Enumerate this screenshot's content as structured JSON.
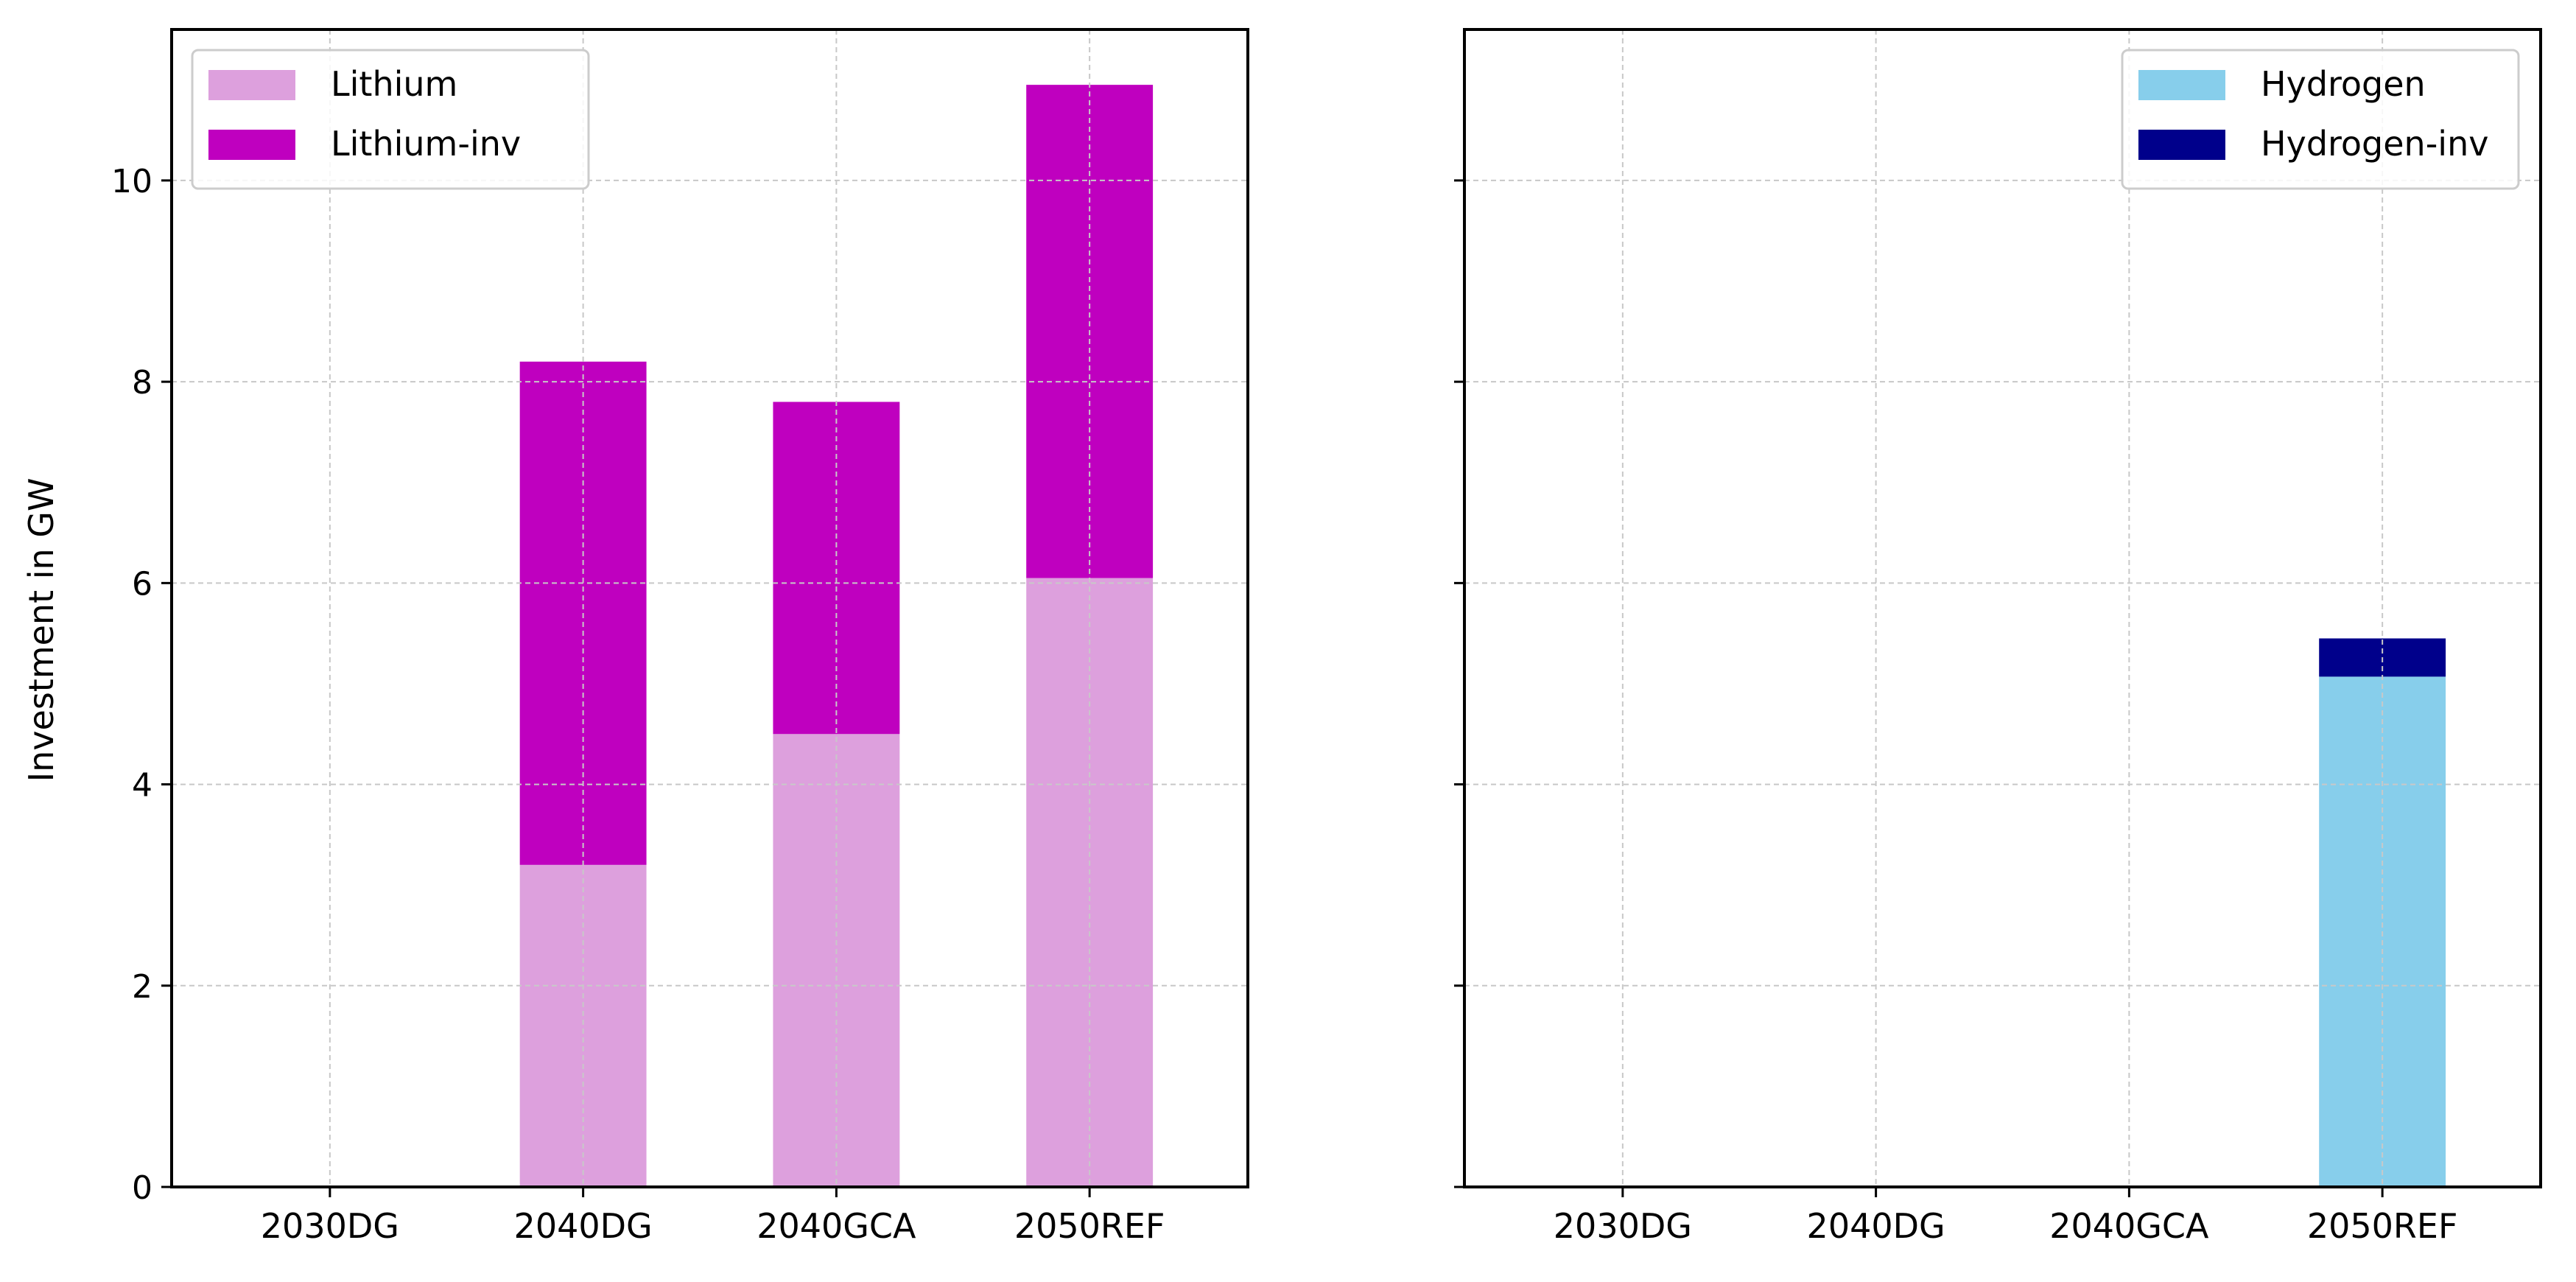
{
  "ylabel": "Investment in GW",
  "chart_data": [
    {
      "type": "bar",
      "stacked": true,
      "categories": [
        "2030DG",
        "2040DG",
        "2040GCA",
        "2050REF"
      ],
      "series": [
        {
          "name": "Lithium",
          "color": "#dda0dd",
          "values": [
            0,
            3.2,
            4.5,
            6.05
          ]
        },
        {
          "name": "Lithium-inv",
          "color": "#bf00bf",
          "values": [
            0,
            5.0,
            3.3,
            4.9
          ]
        }
      ],
      "title": "",
      "xlabel": "",
      "ylabel": "Investment in GW",
      "ylim": [
        0,
        11.5
      ],
      "yticks": [
        "0",
        "2",
        "4",
        "6",
        "8",
        "10"
      ],
      "grid": true,
      "legend_position": "top-left"
    },
    {
      "type": "bar",
      "stacked": true,
      "categories": [
        "2030DG",
        "2040DG",
        "2040GCA",
        "2050REF"
      ],
      "series": [
        {
          "name": "Hydrogen",
          "color": "#87ceeb",
          "values": [
            0,
            0,
            0,
            5.07
          ]
        },
        {
          "name": "Hydrogen-inv",
          "color": "#00008b",
          "values": [
            0,
            0,
            0,
            0.38
          ]
        }
      ],
      "title": "",
      "xlabel": "",
      "ylabel": "",
      "ylim": [
        0,
        11.5
      ],
      "yticks": [
        "0",
        "2",
        "4",
        "6",
        "8",
        "10"
      ],
      "grid": true,
      "legend_position": "top-right"
    }
  ]
}
